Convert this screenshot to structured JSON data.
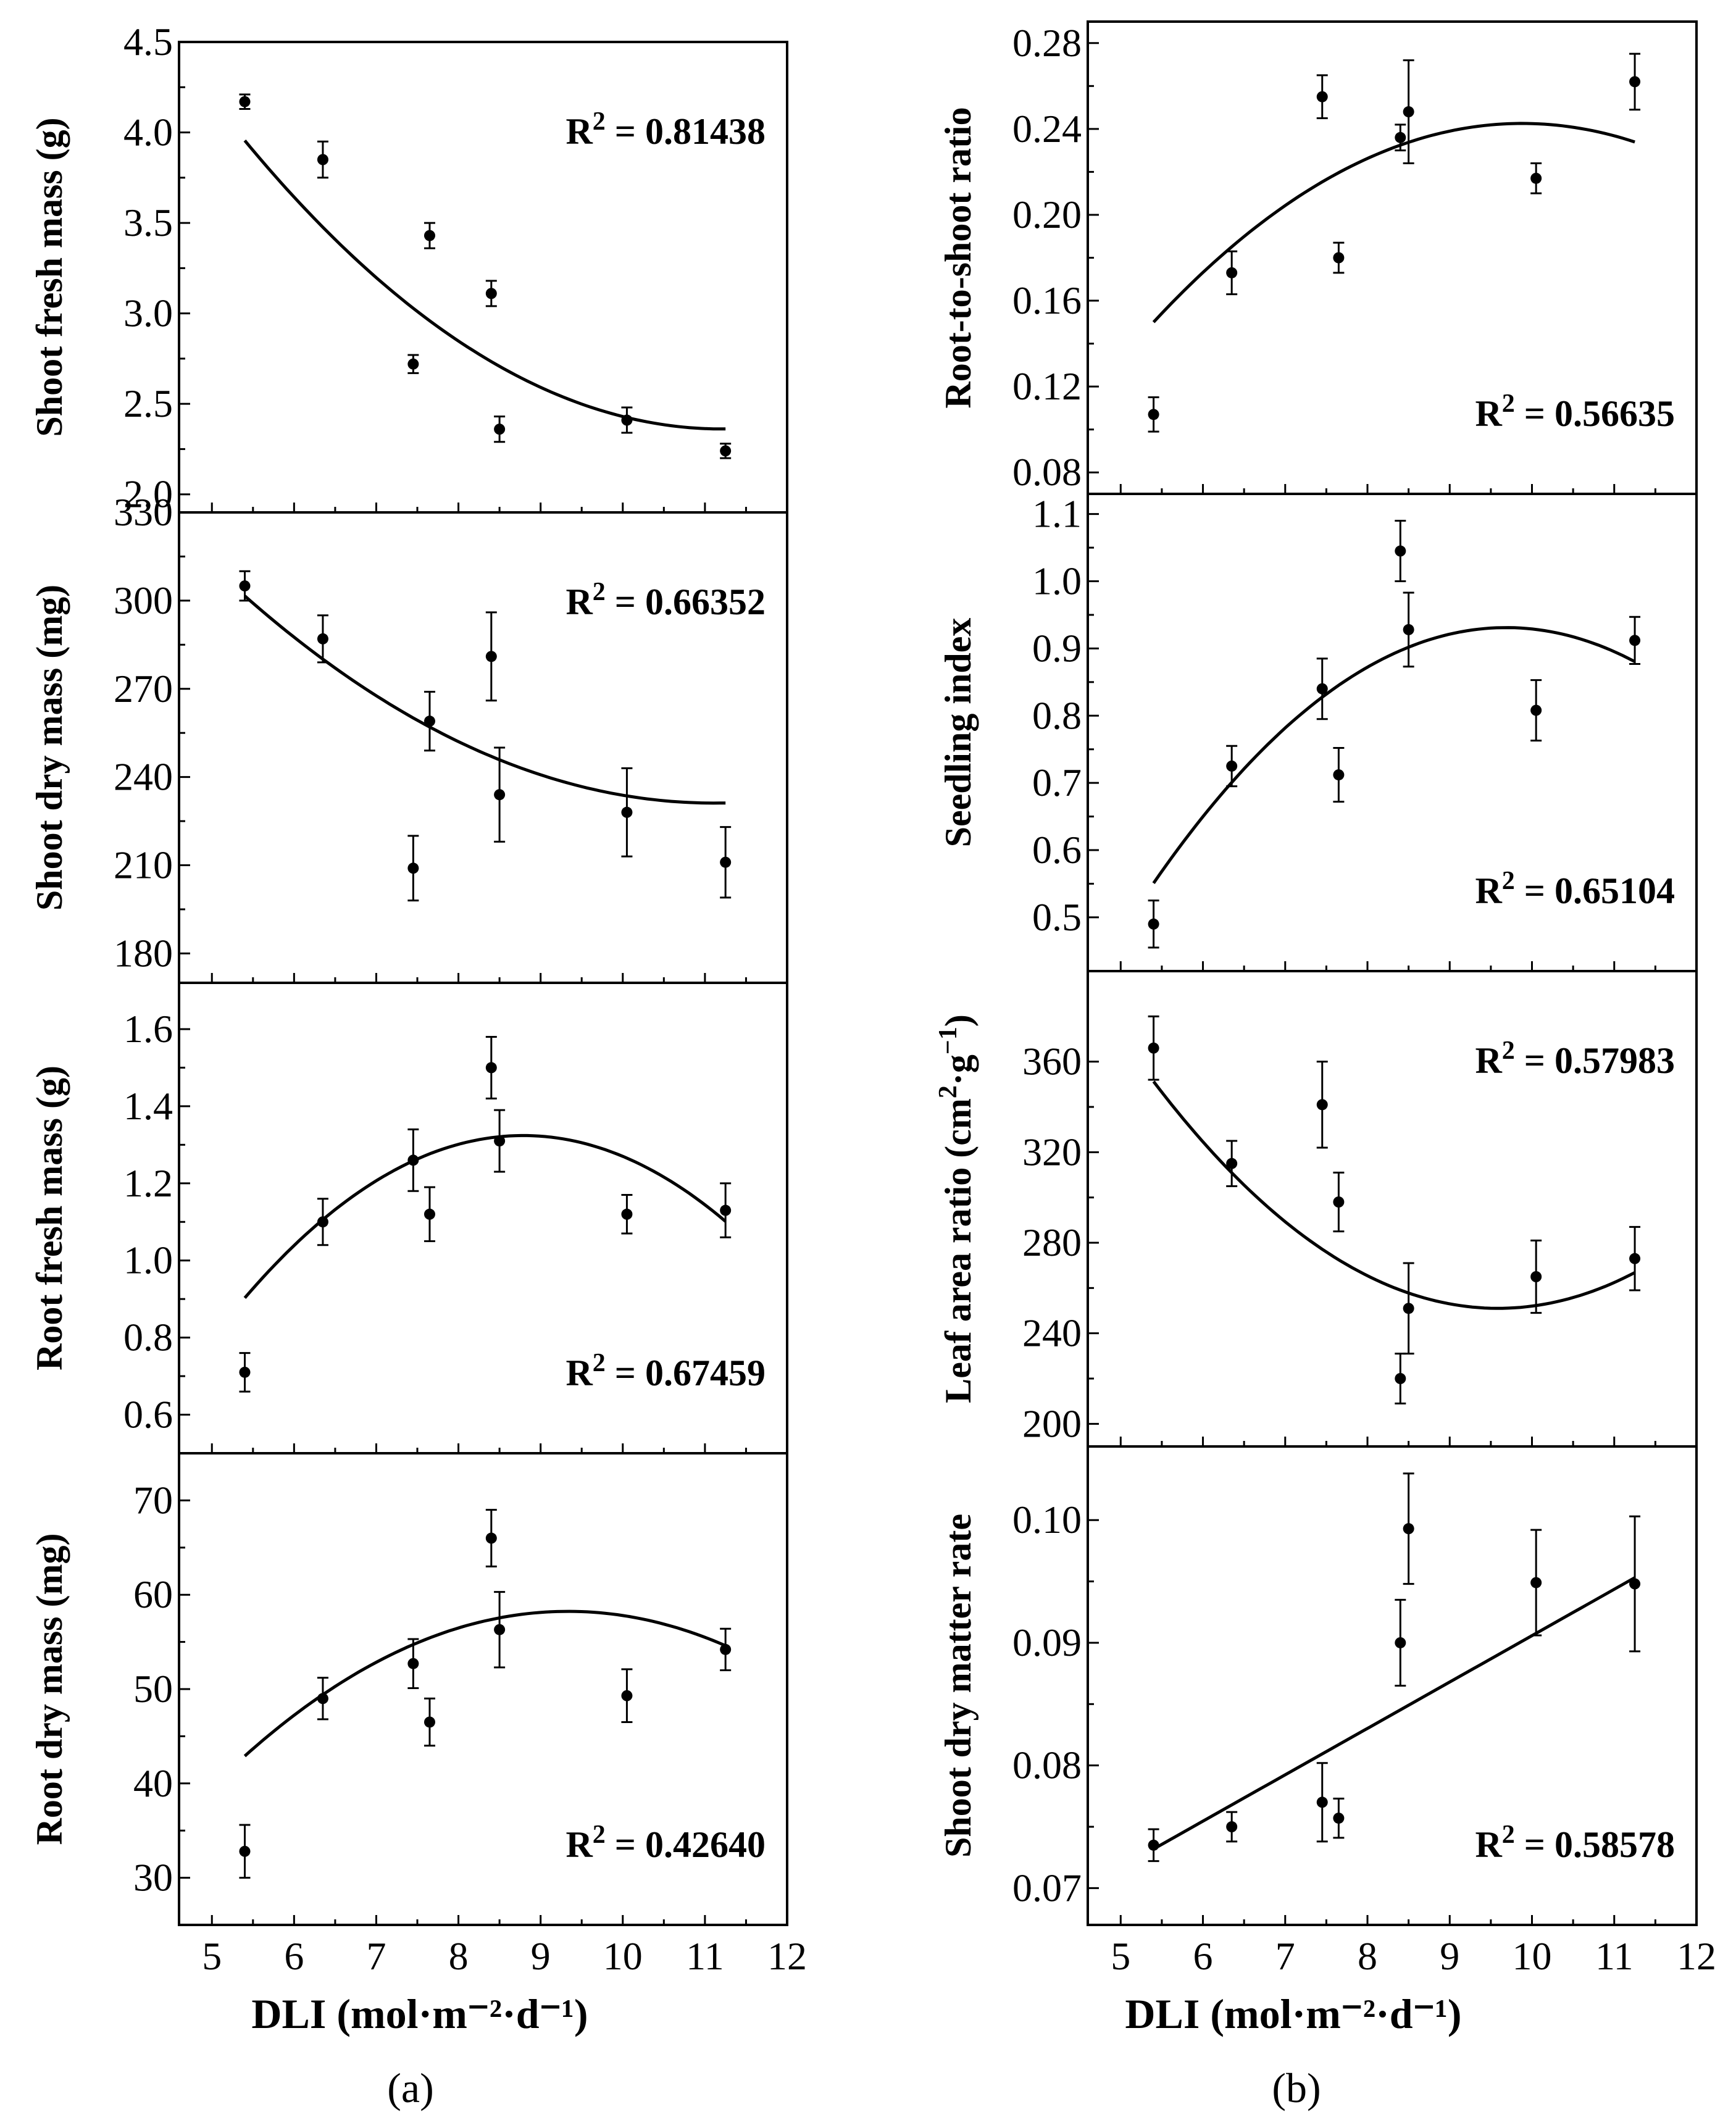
{
  "figure": {
    "x_axis_label": "DLI (mol·m⁻²·d⁻¹)",
    "panel_labels": [
      "(a)",
      "(b)"
    ]
  },
  "chart_data": [
    {
      "type": "scatter",
      "column": "a",
      "ylabel": "Shoot fresh mass (g)",
      "ylim": [
        1.9,
        4.5
      ],
      "yticks": [
        2.0,
        2.5,
        3.0,
        3.5,
        4.0,
        4.5
      ],
      "ytick_labels": [
        "2.0",
        "2.5",
        "3.0",
        "3.5",
        "4.0",
        "4.5"
      ],
      "xlim": [
        4.6,
        12
      ],
      "x": [
        5.4,
        6.35,
        7.45,
        7.65,
        8.4,
        8.5,
        10.05,
        11.25
      ],
      "y": [
        4.17,
        3.85,
        2.72,
        3.43,
        3.11,
        2.36,
        2.41,
        2.24
      ],
      "err": [
        0.04,
        0.1,
        0.05,
        0.07,
        0.07,
        0.07,
        0.07,
        0.04
      ],
      "fit": "quadratic",
      "fit_coef": [
        8.3,
        -1.06,
        0.0473
      ],
      "fit_range": [
        5.4,
        11.25
      ],
      "r2_text": "R² = 0.81438",
      "r2_pos": "top-right"
    },
    {
      "type": "scatter",
      "column": "a",
      "ylabel": "Shoot dry mass (mg)",
      "ylim": [
        170,
        330
      ],
      "yticks": [
        180,
        210,
        240,
        270,
        300,
        330
      ],
      "ytick_labels": [
        "180",
        "210",
        "240",
        "270",
        "300",
        "330"
      ],
      "xlim": [
        4.6,
        12
      ],
      "x": [
        5.4,
        6.35,
        7.45,
        7.65,
        8.4,
        8.5,
        10.05,
        11.25
      ],
      "y": [
        305,
        287,
        209,
        259,
        281,
        234,
        228,
        211
      ],
      "err": [
        5,
        8,
        11,
        10,
        15,
        16,
        15,
        12
      ],
      "fit": "quadratic",
      "fit_coef": [
        497.8,
        -48.0,
        2.16
      ],
      "fit_range": [
        5.4,
        11.25
      ],
      "r2_text": "R² = 0.66352",
      "r2_pos": "top-right"
    },
    {
      "type": "scatter",
      "column": "a",
      "ylabel": "Root fresh mass (g)",
      "ylim": [
        0.5,
        1.72
      ],
      "yticks": [
        0.6,
        0.8,
        1.0,
        1.2,
        1.4,
        1.6
      ],
      "ytick_labels": [
        "0.6",
        "0.8",
        "1.0",
        "1.2",
        "1.4",
        "1.6"
      ],
      "xlim": [
        4.6,
        12
      ],
      "x": [
        5.4,
        6.35,
        7.45,
        7.65,
        8.4,
        8.5,
        10.05,
        11.25
      ],
      "y": [
        0.71,
        1.1,
        1.26,
        1.12,
        1.5,
        1.31,
        1.12,
        1.13
      ],
      "err": [
        0.05,
        0.06,
        0.08,
        0.07,
        0.08,
        0.08,
        0.05,
        0.07
      ],
      "fit": "quadratic",
      "fit_coef": [
        -1.51,
        0.645,
        -0.0367
      ],
      "fit_range": [
        5.4,
        11.25
      ],
      "r2_text": "R² = 0.67459",
      "r2_pos": "bottom-right"
    },
    {
      "type": "scatter",
      "column": "a",
      "ylabel": "Root dry mass (mg)",
      "ylim": [
        25,
        75
      ],
      "yticks": [
        30,
        40,
        50,
        60,
        70
      ],
      "ytick_labels": [
        "30",
        "40",
        "50",
        "60",
        "70"
      ],
      "xlim": [
        4.6,
        12
      ],
      "x": [
        5.4,
        6.35,
        7.45,
        7.65,
        8.4,
        8.5,
        10.05,
        11.25
      ],
      "y": [
        32.8,
        49,
        52.7,
        46.5,
        66,
        56.3,
        49.3,
        54.2
      ],
      "err": [
        2.8,
        2.2,
        2.6,
        2.5,
        3,
        4,
        2.8,
        2.2
      ],
      "fit": "quadratic",
      "fit_coef": [
        -28.1,
        18.5,
        -0.991
      ],
      "fit_range": [
        5.4,
        11.25
      ],
      "r2_text": "R² = 0.42640",
      "r2_pos": "bottom-right"
    },
    {
      "type": "scatter",
      "column": "b",
      "ylabel": "Root-to-shoot ratio",
      "ylim": [
        0.07,
        0.29
      ],
      "yticks": [
        0.08,
        0.12,
        0.16,
        0.2,
        0.24,
        0.28
      ],
      "ytick_labels": [
        "0.08",
        "0.12",
        "0.16",
        "0.20",
        "0.24",
        "0.28"
      ],
      "xlim": [
        4.6,
        12
      ],
      "x": [
        5.4,
        6.35,
        7.45,
        7.65,
        8.4,
        8.5,
        10.05,
        11.25
      ],
      "y": [
        0.107,
        0.173,
        0.255,
        0.18,
        0.236,
        0.248,
        0.217,
        0.262
      ],
      "err": [
        0.008,
        0.01,
        0.01,
        0.007,
        0.006,
        0.024,
        0.007,
        0.013
      ],
      "fit": "quadratic",
      "fit_coef": [
        -0.2075,
        0.0911,
        -0.00461
      ],
      "fit_range": [
        5.4,
        11.25
      ],
      "r2_text": "R² =  0.56635",
      "r2_pos": "bottom-right"
    },
    {
      "type": "scatter",
      "column": "b",
      "ylabel": "Seedling index",
      "ylim": [
        0.42,
        1.13
      ],
      "yticks": [
        0.5,
        0.6,
        0.7,
        0.8,
        0.9,
        1.0,
        1.1
      ],
      "ytick_labels": [
        "0.5",
        "0.6",
        "0.7",
        "0.8",
        "0.9",
        "1.0",
        "1.1"
      ],
      "xlim": [
        4.6,
        12
      ],
      "x": [
        5.4,
        6.35,
        7.45,
        7.65,
        8.4,
        8.5,
        10.05,
        11.25
      ],
      "y": [
        0.49,
        0.725,
        0.84,
        0.712,
        1.045,
        0.928,
        0.808,
        0.912
      ],
      "err": [
        0.035,
        0.03,
        0.045,
        0.04,
        0.045,
        0.055,
        0.045,
        0.035
      ],
      "fit": "quadratic",
      "fit_coef": [
        -1.011,
        0.401,
        -0.0207
      ],
      "fit_range": [
        5.4,
        11.25
      ],
      "r2_text": "R² = 0.65104",
      "r2_pos": "bottom-right"
    },
    {
      "type": "scatter",
      "column": "b",
      "ylabel": "Leaf area ratio (cm²·g⁻¹)",
      "ylim": [
        190,
        400
      ],
      "yticks": [
        200,
        240,
        280,
        320,
        360
      ],
      "ytick_labels": [
        "200",
        "240",
        "280",
        "320",
        "360"
      ],
      "xlim": [
        4.6,
        12
      ],
      "x": [
        5.4,
        6.35,
        7.45,
        7.65,
        8.4,
        8.5,
        10.05,
        11.25
      ],
      "y": [
        366,
        315,
        341,
        298,
        220,
        251,
        265,
        273
      ],
      "err": [
        14,
        10,
        19,
        13,
        11,
        20,
        16,
        14
      ],
      "fit": "quadratic",
      "fit_coef": [
        776.4,
        -109.6,
        5.716
      ],
      "fit_range": [
        5.4,
        11.25
      ],
      "r2_text": "R² = 0.57983",
      "r2_pos": "top-right"
    },
    {
      "type": "scatter",
      "column": "b",
      "ylabel": "Shoot dry matter rate",
      "ylim": [
        0.067,
        0.106
      ],
      "yticks": [
        0.07,
        0.08,
        0.09,
        0.1
      ],
      "ytick_labels": [
        "0.07",
        "0.08",
        "0.09",
        "0.10"
      ],
      "xlim": [
        4.6,
        12
      ],
      "x": [
        5.4,
        6.35,
        7.45,
        7.65,
        8.4,
        8.5,
        10.05,
        11.25
      ],
      "y": [
        0.0735,
        0.075,
        0.077,
        0.0757,
        0.09,
        0.0993,
        0.0949,
        0.0948
      ],
      "err": [
        0.0013,
        0.0012,
        0.0032,
        0.0016,
        0.0035,
        0.0045,
        0.0043,
        0.0055
      ],
      "fit": "linear",
      "fit_coef": [
        0.05277,
        0.003781
      ],
      "fit_range": [
        5.4,
        11.25
      ],
      "r2_text": "R² = 0.58578",
      "r2_pos": "bottom-right"
    }
  ]
}
